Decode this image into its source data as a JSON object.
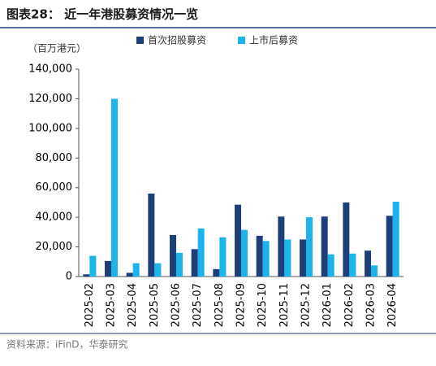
{
  "chart_data": {
    "type": "bar",
    "title": "图表28： 近一年港股募资情况一览",
    "y_label": "（百万港元）",
    "source": "资料来源：iFinD，华泰研究",
    "categories": [
      "2025-02",
      "2025-03",
      "2025-04",
      "2025-05",
      "2025-06",
      "2025-07",
      "2025-08",
      "2025-09",
      "2025-10",
      "2025-11",
      "2025-12",
      "2026-01",
      "2026-02",
      "2026-03",
      "2026-04"
    ],
    "series": [
      {
        "name": "首次招股募资",
        "color": "#1d3f7c",
        "values": [
          1500,
          10500,
          2500,
          56000,
          28000,
          18500,
          5000,
          48500,
          27500,
          40500,
          25000,
          40500,
          50000,
          17500,
          41000
        ]
      },
      {
        "name": "上市后募资",
        "color": "#1db4ec",
        "values": [
          14000,
          120000,
          9000,
          9000,
          16000,
          32500,
          26500,
          31500,
          24000,
          25000,
          40000,
          15000,
          15500,
          7500,
          50500
        ]
      }
    ],
    "ylim": [
      0,
      140000
    ],
    "yticks": [
      {
        "value": 0,
        "label": "0"
      },
      {
        "value": 20000,
        "label": "20,000"
      },
      {
        "value": 40000,
        "label": "40,000"
      },
      {
        "value": 60000,
        "label": "60,000"
      },
      {
        "value": 80000,
        "label": "80,000"
      },
      {
        "value": 100000,
        "label": "100,000"
      },
      {
        "value": 120000,
        "label": "120,000"
      },
      {
        "value": 140000,
        "label": "140,000"
      }
    ],
    "grid": false
  }
}
